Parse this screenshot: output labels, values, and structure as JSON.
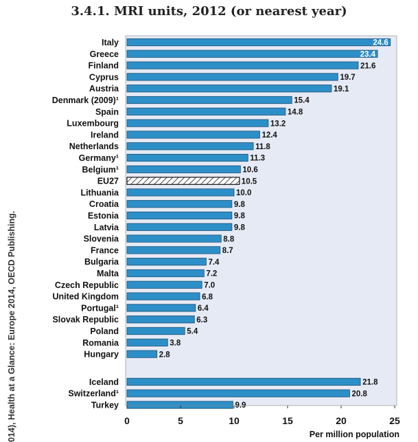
{
  "title": "3.4.1.  MRI units, 2012 (or nearest year)",
  "side_note": "014), Health at a Glance: Europe 2014, OECD Publishing.",
  "chart_data": {
    "type": "bar",
    "orientation": "horizontal",
    "title": "3.4.1.  MRI units, 2012 (or nearest year)",
    "xlabel": "Per million population",
    "xlim": [
      0,
      25
    ],
    "xticks": [
      "0",
      "5",
      "10",
      "15",
      "20",
      "25"
    ],
    "grid": false,
    "colors": {
      "bar": "#2d8fc8",
      "bar_edge": "#1c4f74",
      "plot_bg": "#e6eaf4",
      "highlight": "#ffffff"
    },
    "groups": [
      {
        "categories": [
          "Italy",
          "Greece",
          "Finland",
          "Cyprus",
          "Austria",
          "Denmark (2009)¹",
          "Spain",
          "Luxembourg",
          "Ireland",
          "Netherlands",
          "Germany¹",
          "Belgium¹",
          "EU27",
          "Lithuania",
          "Croatia",
          "Estonia",
          "Latvia",
          "Slovenia",
          "France",
          "Bulgaria",
          "Malta",
          "Czech Republic",
          "United Kingdom",
          "Portugal¹",
          "Slovak Republic",
          "Poland",
          "Romania",
          "Hungary"
        ],
        "values": [
          24.6,
          23.4,
          21.6,
          19.7,
          19.1,
          15.4,
          14.8,
          13.2,
          12.4,
          11.8,
          11.3,
          10.6,
          10.5,
          10.0,
          9.8,
          9.8,
          9.8,
          8.8,
          8.7,
          7.4,
          7.2,
          7.0,
          6.8,
          6.4,
          6.3,
          5.4,
          3.8,
          2.8
        ],
        "labels": [
          "24.6",
          "23.4",
          "21.6",
          "19.7",
          "19.1",
          "15.4",
          "14.8",
          "13.2",
          "12.4",
          "11.8",
          "11.3",
          "10.6",
          "10.5",
          "10.0",
          "9.8",
          "9.8",
          "9.8",
          "8.8",
          "8.7",
          "7.4",
          "7.2",
          "7.0",
          "6.8",
          "6.4",
          "6.3",
          "5.4",
          "3.8",
          "2.8"
        ],
        "highlighted": [
          "EU27"
        ]
      },
      {
        "categories": [
          "Iceland",
          "Switzerland¹",
          "Turkey"
        ],
        "values": [
          21.8,
          20.8,
          9.9
        ],
        "labels": [
          "21.8",
          "20.8",
          "9.9"
        ],
        "highlighted": []
      }
    ]
  }
}
